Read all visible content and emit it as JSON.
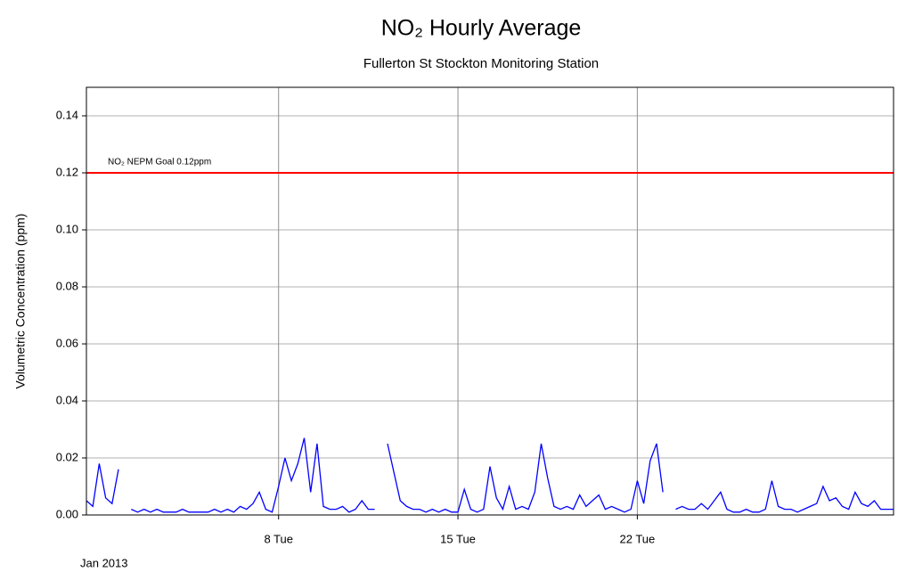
{
  "chart_data": {
    "type": "line",
    "title": "NO₂ Hourly  Average",
    "subtitle": "Fullerton St Stockton Monitoring Station",
    "y_label": "Volumetric Concentration (ppm)",
    "x_label": "Jan 2013",
    "xlim": [
      0.5,
      32
    ],
    "xticks": [
      {
        "value": 8,
        "label": "8 Tue"
      },
      {
        "value": 15,
        "label": "15 Tue"
      },
      {
        "value": 22,
        "label": "22 Tue"
      }
    ],
    "ylim": [
      0,
      0.15
    ],
    "yticks": [
      {
        "value": 0,
        "label": "0.00"
      },
      {
        "value": 0.02,
        "label": "0.02"
      },
      {
        "value": 0.04,
        "label": "0.04"
      },
      {
        "value": 0.06,
        "label": "0.06"
      },
      {
        "value": 0.08,
        "label": "0.08"
      },
      {
        "value": 0.1,
        "label": "0.10"
      },
      {
        "value": 0.12,
        "label": "0.12"
      },
      {
        "value": 0.14,
        "label": "0.14"
      }
    ],
    "grid": true,
    "reference_line": {
      "value": 0.12,
      "label": "NO₂ NEPM Goal 0.12ppm",
      "color": "#ff0000"
    },
    "x": [
      0.5,
      0.75,
      1,
      1.25,
      1.5,
      1.75,
      2,
      2.25,
      2.5,
      2.75,
      3,
      3.25,
      3.5,
      3.75,
      4,
      4.25,
      4.5,
      4.75,
      5,
      5.25,
      5.5,
      5.75,
      6,
      6.25,
      6.5,
      6.75,
      7,
      7.25,
      7.5,
      7.75,
      8,
      8.25,
      8.5,
      8.75,
      9,
      9.25,
      9.5,
      9.75,
      10,
      10.25,
      10.5,
      10.75,
      11,
      11.25,
      11.5,
      11.75,
      12,
      12.25,
      12.5,
      12.75,
      13,
      13.25,
      13.5,
      13.75,
      14,
      14.25,
      14.5,
      14.75,
      15,
      15.25,
      15.5,
      15.75,
      16,
      16.25,
      16.5,
      16.75,
      17,
      17.25,
      17.5,
      17.75,
      18,
      18.25,
      18.5,
      18.75,
      19,
      19.25,
      19.5,
      19.75,
      20,
      20.25,
      20.5,
      20.75,
      21,
      21.25,
      21.5,
      21.75,
      22,
      22.25,
      22.5,
      22.75,
      23,
      23.25,
      23.5,
      23.75,
      24,
      24.25,
      24.5,
      24.75,
      25,
      25.25,
      25.5,
      25.75,
      26,
      26.25,
      26.5,
      26.75,
      27,
      27.25,
      27.5,
      27.75,
      28,
      28.25,
      28.5,
      28.75,
      29,
      29.25,
      29.5,
      29.75,
      30,
      30.25,
      30.5,
      30.75,
      31,
      31.25,
      31.5,
      31.75,
      32
    ],
    "series": [
      {
        "name": "NO₂",
        "color": "#0000ff",
        "values": [
          0.005,
          0.003,
          0.018,
          0.006,
          0.004,
          0.016,
          null,
          0.002,
          0.001,
          0.002,
          0.001,
          0.002,
          0.001,
          0.001,
          0.001,
          0.002,
          0.001,
          0.001,
          0.001,
          0.001,
          0.002,
          0.001,
          0.002,
          0.001,
          0.003,
          0.002,
          0.004,
          0.008,
          0.002,
          0.001,
          0.01,
          0.02,
          0.012,
          0.018,
          0.027,
          0.008,
          0.025,
          0.003,
          0.002,
          0.002,
          0.003,
          0.001,
          0.002,
          0.005,
          0.002,
          0.002,
          null,
          0.025,
          0.015,
          0.005,
          0.003,
          0.002,
          0.002,
          0.001,
          0.002,
          0.001,
          0.002,
          0.001,
          0.001,
          0.009,
          0.002,
          0.001,
          0.002,
          0.017,
          0.006,
          0.002,
          0.01,
          0.002,
          0.003,
          0.002,
          0.008,
          0.025,
          0.013,
          0.003,
          0.002,
          0.003,
          0.002,
          0.007,
          0.003,
          0.005,
          0.007,
          0.002,
          0.003,
          0.002,
          0.001,
          0.002,
          0.012,
          0.004,
          0.019,
          0.025,
          0.008,
          null,
          0.002,
          0.003,
          0.002,
          0.002,
          0.004,
          0.002,
          0.005,
          0.008,
          0.002,
          0.001,
          0.001,
          0.002,
          0.001,
          0.001,
          0.002,
          0.012,
          0.003,
          0.002,
          0.002,
          0.001,
          0.002,
          0.003,
          0.004,
          0.01,
          0.005,
          0.006,
          0.003,
          0.002,
          0.008,
          0.004,
          0.003,
          0.005,
          0.002,
          0.002,
          0.002
        ]
      }
    ]
  }
}
